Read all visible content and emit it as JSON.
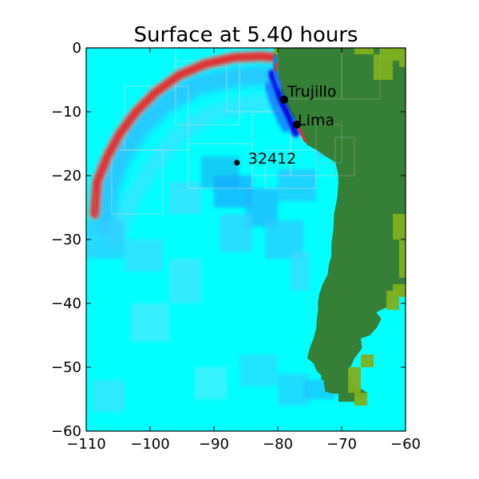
{
  "chart_data": {
    "type": "heatmap",
    "title": "Surface at 5.40 hours",
    "xlabel": "",
    "ylabel": "",
    "xlim": [
      -110,
      -60
    ],
    "ylim": [
      -60,
      0
    ],
    "xticks": [
      -110,
      -100,
      -90,
      -80,
      -70,
      -60
    ],
    "yticks": [
      0,
      -10,
      -20,
      -30,
      -40,
      -50,
      -60
    ],
    "xtick_labels": [
      "−110",
      "−100",
      "−90",
      "−80",
      "−70",
      "−60"
    ],
    "ytick_labels": [
      "0",
      "−10",
      "−20",
      "−30",
      "−40",
      "−50",
      "−60"
    ],
    "grid": false,
    "colors": {
      "ocean": "#00ffff",
      "ocean_depressed": "#0080ff",
      "wave_crest": "#e03030",
      "coast_trough": "#0000e0",
      "land": "#367f36",
      "highland": "#7fb020",
      "patch_outline": "#d8d8d8"
    },
    "wave_front": [
      {
        "x": -108.7,
        "y": -26
      },
      {
        "x": -108.3,
        "y": -21
      },
      {
        "x": -106.7,
        "y": -17
      },
      {
        "x": -104.8,
        "y": -13.5
      },
      {
        "x": -102.2,
        "y": -10
      },
      {
        "x": -99.2,
        "y": -7
      },
      {
        "x": -95.5,
        "y": -4.3
      },
      {
        "x": -91.3,
        "y": -2.5
      },
      {
        "x": -86.8,
        "y": -1.5
      },
      {
        "x": -82.5,
        "y": -1.3
      },
      {
        "x": -80.5,
        "y": -1.5
      }
    ],
    "markers": [
      {
        "label": "Trujillo",
        "lon": -79.0,
        "lat": -8.1
      },
      {
        "label": "Lima",
        "lon": -77.0,
        "lat": -12.0
      },
      {
        "label": "32412",
        "lon": -86.4,
        "lat": -17.97
      }
    ]
  }
}
